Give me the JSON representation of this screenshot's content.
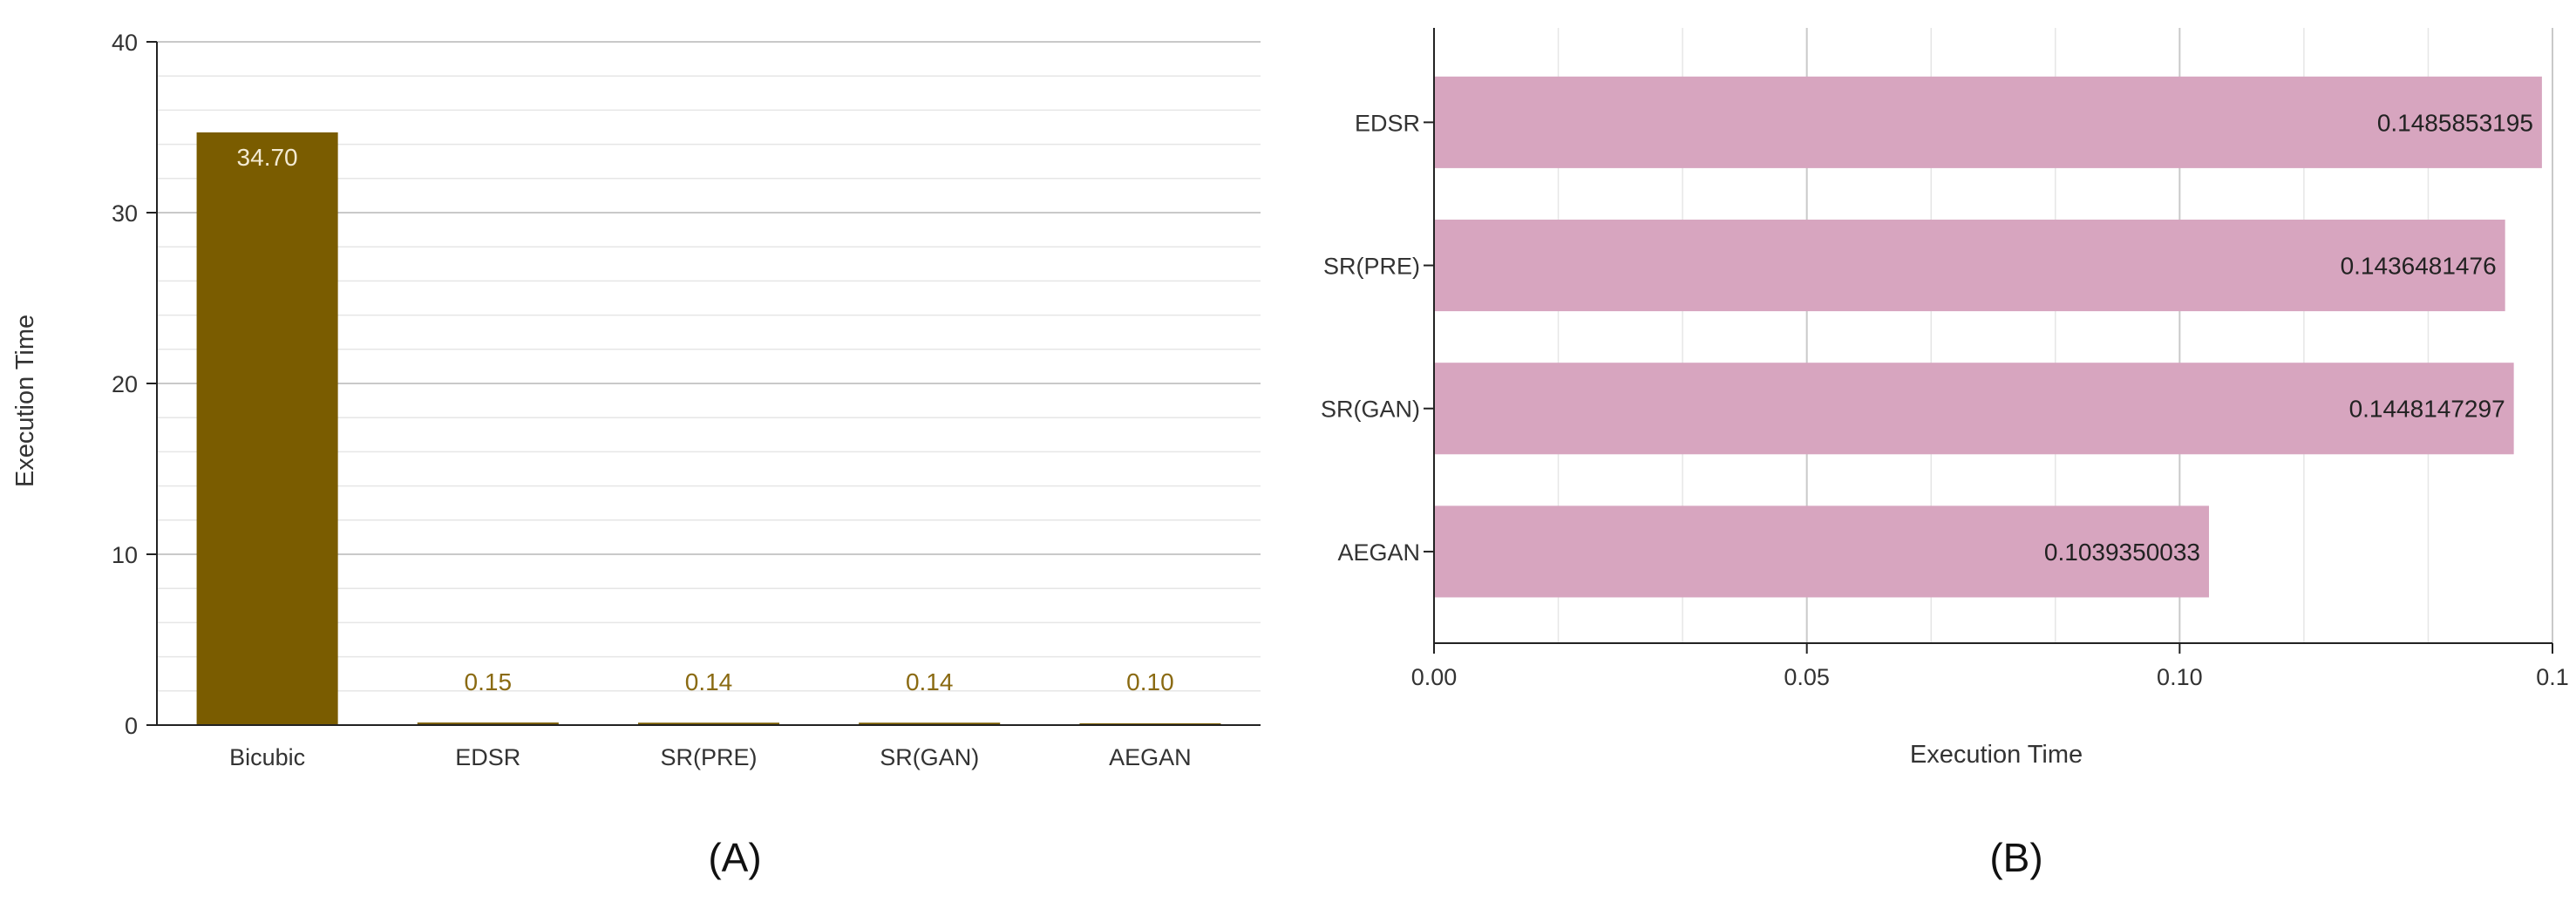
{
  "chart_data": [
    {
      "type": "bar",
      "orientation": "vertical",
      "caption": "(A)",
      "categories": [
        "Bicubic",
        "EDSR",
        "SR(PRE)",
        "SR(GAN)",
        "AEGAN"
      ],
      "values": [
        34.7,
        0.15,
        0.14,
        0.14,
        0.1
      ],
      "data_labels": [
        "34.70",
        "0.15",
        "0.14",
        "0.14",
        "0.10"
      ],
      "xlabel": "",
      "ylabel": "Execution Time",
      "ylim": [
        0,
        40
      ],
      "yticks": [
        0,
        10,
        20,
        30,
        40
      ],
      "grid": true,
      "bar_color": "#7a5c00"
    },
    {
      "type": "bar",
      "orientation": "horizontal",
      "caption": "(B)",
      "categories": [
        "EDSR",
        "SR(PRE)",
        "SR(GAN)",
        "AEGAN"
      ],
      "values": [
        0.1485853195,
        0.1436481476,
        0.1448147297,
        0.1039350033
      ],
      "data_labels": [
        "0.1485853195",
        "0.1436481476",
        "0.1448147297",
        "0.1039350033"
      ],
      "xlabel": "Execution Time",
      "ylabel": "",
      "xlim": [
        0,
        0.15
      ],
      "xticks": [
        "0.00",
        "0.05",
        "0.10",
        "0.1"
      ],
      "grid": true,
      "bar_color": "#d7a5bf"
    }
  ]
}
